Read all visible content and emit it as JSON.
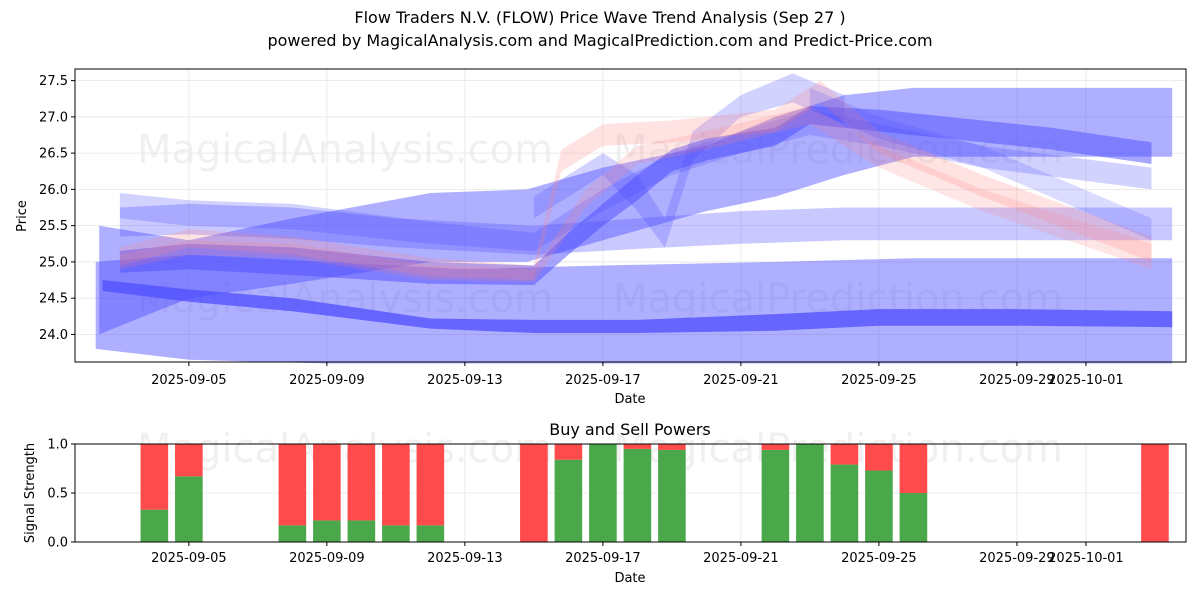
{
  "title": {
    "line1": "Flow Traders N.V. (FLOW) Price Wave Trend Analysis (Sep 27 )",
    "line2": "powered by MagicalAnalysis.com and MagicalPrediction.com and Predict-Price.com"
  },
  "watermarks": {
    "top_left": "MagicalAnalysis.com",
    "top_right": "MagicalPrediction.com",
    "mid_left": "MagicalAnalysis.com",
    "mid_right": "MagicalPrediction.com",
    "bottom_left": "MagicalAnalysis.com",
    "bottom_right": "MagicalPrediction.com"
  },
  "colors": {
    "buy": "#4aa84a",
    "sell": "#ff4b4b",
    "wave_blue": "#4d4dff",
    "wave_red": "#ff8080"
  },
  "chart_data": [
    {
      "type": "area",
      "title": "",
      "xlabel": "Date",
      "ylabel": "Price",
      "x_tick_labels": [
        "2025-09-05",
        "2025-09-09",
        "2025-09-13",
        "2025-09-17",
        "2025-09-21",
        "2025-09-25",
        "2025-09-29",
        "2025-10-01"
      ],
      "x_tick_days": [
        5,
        9,
        13,
        17,
        21,
        25,
        29,
        31
      ],
      "xlim_days": [
        1.7,
        33.9
      ],
      "y_ticks": [
        24.0,
        24.5,
        25.0,
        25.5,
        26.0,
        26.5,
        27.0,
        27.5
      ],
      "ylim": [
        23.62,
        27.66
      ],
      "series": [
        {
          "name": "wave-wide-low",
          "color": "blue",
          "x": [
            2.3,
            5,
            9,
            13,
            17,
            22,
            26,
            30,
            33.5
          ],
          "upper": [
            25.0,
            25.1,
            25.0,
            24.9,
            24.95,
            25.0,
            25.05,
            25.05,
            25.05
          ],
          "lower": [
            23.8,
            23.65,
            23.6,
            23.6,
            23.6,
            23.6,
            23.6,
            23.6,
            23.6
          ],
          "opacity": 0.45
        },
        {
          "name": "wave-low-thick",
          "color": "blue",
          "x": [
            2.5,
            5,
            8,
            12,
            15,
            18,
            22,
            25,
            29,
            33.5
          ],
          "upper": [
            24.75,
            24.62,
            24.5,
            24.22,
            24.2,
            24.2,
            24.28,
            24.35,
            24.35,
            24.32
          ],
          "lower": [
            24.6,
            24.45,
            24.32,
            24.08,
            24.02,
            24.02,
            24.05,
            24.12,
            24.12,
            24.1
          ],
          "opacity": 0.75
        },
        {
          "name": "wave-flat-upper",
          "color": "blue",
          "x": [
            3,
            5,
            8,
            11,
            15,
            18,
            21,
            24,
            26,
            29,
            33.5
          ],
          "upper": [
            25.75,
            25.8,
            25.75,
            25.6,
            25.5,
            25.6,
            25.7,
            25.75,
            25.75,
            25.75,
            25.75
          ],
          "lower": [
            25.35,
            25.38,
            25.32,
            25.2,
            25.1,
            25.18,
            25.25,
            25.3,
            25.3,
            25.3,
            25.3
          ],
          "opacity": 0.3
        },
        {
          "name": "wave-diag-up",
          "color": "blue",
          "x": [
            2.4,
            5,
            8,
            12,
            14.8,
            17,
            20,
            22,
            24,
            26,
            29,
            33.5
          ],
          "upper": [
            25.5,
            25.3,
            25.6,
            25.95,
            26.0,
            26.3,
            26.6,
            27.0,
            27.3,
            27.4,
            27.4,
            27.4
          ],
          "lower": [
            24.0,
            24.5,
            24.7,
            25.0,
            25.0,
            25.3,
            25.7,
            25.9,
            26.2,
            26.45,
            26.45,
            26.45
          ],
          "opacity": 0.45
        },
        {
          "name": "wave-mid-main",
          "color": "blue",
          "x": [
            3,
            5,
            8,
            12,
            15,
            16,
            17,
            18,
            19,
            20,
            22,
            23,
            25,
            27,
            30,
            32.9
          ],
          "upper": [
            25.15,
            25.25,
            25.2,
            25.0,
            24.95,
            25.4,
            25.8,
            26.2,
            26.55,
            26.7,
            26.85,
            27.15,
            27.1,
            27.0,
            26.85,
            26.65
          ],
          "lower": [
            24.85,
            24.9,
            24.82,
            24.7,
            24.68,
            25.1,
            25.5,
            25.85,
            26.25,
            26.4,
            26.6,
            26.9,
            26.8,
            26.7,
            26.55,
            26.35
          ],
          "opacity": 0.5
        },
        {
          "name": "wave-mid-light",
          "color": "blue",
          "x": [
            3,
            5,
            8,
            12,
            15,
            17,
            19,
            21,
            23,
            25,
            28,
            32.9
          ],
          "upper": [
            25.95,
            25.85,
            25.8,
            25.55,
            25.4,
            26.0,
            26.5,
            26.8,
            27.1,
            26.9,
            26.6,
            26.3
          ],
          "lower": [
            25.6,
            25.5,
            25.45,
            25.25,
            25.15,
            25.7,
            26.2,
            26.5,
            26.75,
            26.6,
            26.3,
            26.0
          ],
          "opacity": 0.25
        },
        {
          "name": "wave-dip-light",
          "color": "blue",
          "x": [
            15,
            17,
            18,
            18.8,
            19.6,
            21,
            22.5,
            24
          ],
          "upper": [
            25.9,
            26.5,
            26.2,
            25.6,
            26.8,
            27.3,
            27.6,
            27.3
          ],
          "lower": [
            25.6,
            26.2,
            25.7,
            25.2,
            26.4,
            27.0,
            27.2,
            26.9
          ],
          "opacity": 0.25
        },
        {
          "name": "wave-red-1",
          "color": "red",
          "x": [
            3,
            5,
            8,
            12,
            15,
            15.8,
            17,
            19,
            22,
            23.3,
            25,
            28,
            32.9
          ],
          "upper": [
            25.2,
            25.45,
            25.35,
            25.05,
            24.95,
            26.55,
            26.9,
            26.95,
            27.1,
            27.5,
            26.8,
            26.2,
            25.35
          ],
          "lower": [
            24.95,
            25.2,
            25.1,
            24.8,
            24.75,
            26.25,
            26.6,
            26.65,
            26.8,
            27.2,
            26.5,
            25.9,
            25.0
          ],
          "opacity": 0.22
        },
        {
          "name": "wave-red-2",
          "color": "red",
          "x": [
            3,
            5,
            8,
            12,
            15,
            16.5,
            18,
            20,
            23,
            25,
            28,
            32.9
          ],
          "upper": [
            25.1,
            25.3,
            25.25,
            24.95,
            24.9,
            26.0,
            26.6,
            26.8,
            27.15,
            26.6,
            26.0,
            25.25
          ],
          "lower": [
            24.9,
            25.1,
            25.05,
            24.75,
            24.72,
            25.75,
            26.35,
            26.55,
            26.9,
            26.3,
            25.7,
            24.9
          ],
          "opacity": 0.2
        },
        {
          "name": "wave-blue-tail",
          "color": "blue",
          "x": [
            23,
            25,
            28,
            32.9
          ],
          "upper": [
            27.4,
            27.0,
            26.6,
            25.6
          ],
          "lower": [
            27.1,
            26.7,
            26.3,
            25.3
          ],
          "opacity": 0.2
        }
      ]
    },
    {
      "type": "bar",
      "title": "Buy and Sell Powers",
      "xlabel": "Date",
      "ylabel": "Signal Strength",
      "ylim": [
        0,
        1
      ],
      "y_ticks": [
        0.0,
        0.5,
        1.0
      ],
      "x_tick_labels": [
        "2025-09-05",
        "2025-09-09",
        "2025-09-13",
        "2025-09-17",
        "2025-09-21",
        "2025-09-25",
        "2025-09-29",
        "2025-10-01"
      ],
      "x_tick_days": [
        5,
        9,
        13,
        17,
        21,
        25,
        29,
        31
      ],
      "xlim_days": [
        1.7,
        33.9
      ],
      "bars": [
        {
          "day": 4,
          "buy": 0.33,
          "sell": 0.67
        },
        {
          "day": 5,
          "buy": 0.67,
          "sell": 0.33
        },
        {
          "day": 8,
          "buy": 0.17,
          "sell": 0.83
        },
        {
          "day": 9,
          "buy": 0.22,
          "sell": 0.78
        },
        {
          "day": 10,
          "buy": 0.22,
          "sell": 0.78
        },
        {
          "day": 11,
          "buy": 0.17,
          "sell": 0.83
        },
        {
          "day": 12,
          "buy": 0.17,
          "sell": 0.83
        },
        {
          "day": 15,
          "buy": 0.0,
          "sell": 1.0
        },
        {
          "day": 16,
          "buy": 0.84,
          "sell": 0.16
        },
        {
          "day": 17,
          "buy": 1.0,
          "sell": 0.0
        },
        {
          "day": 18,
          "buy": 0.95,
          "sell": 0.05
        },
        {
          "day": 19,
          "buy": 0.94,
          "sell": 0.06
        },
        {
          "day": 22,
          "buy": 0.94,
          "sell": 0.06
        },
        {
          "day": 23,
          "buy": 1.0,
          "sell": 0.0
        },
        {
          "day": 24,
          "buy": 0.79,
          "sell": 0.21
        },
        {
          "day": 25,
          "buy": 0.73,
          "sell": 0.27
        },
        {
          "day": 26,
          "buy": 0.5,
          "sell": 0.5
        },
        {
          "day": 33,
          "buy": 0.0,
          "sell": 1.0
        }
      ]
    }
  ]
}
